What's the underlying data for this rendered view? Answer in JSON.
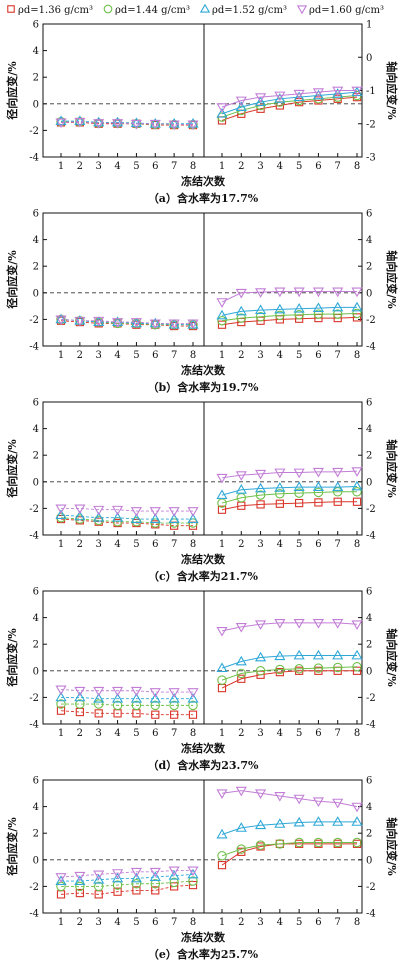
{
  "legend": {
    "entries": [
      {
        "label": "ρd=1.36 g/cm³",
        "color": "#d9352a",
        "marker": "square"
      },
      {
        "label": "ρd=1.44 g/cm³",
        "color": "#6fc04a",
        "marker": "circle"
      },
      {
        "label": "ρd=1.52 g/cm³",
        "color": "#2fa8d8",
        "marker": "triangle-up"
      },
      {
        "label": "ρd=1.60 g/cm³",
        "color": "#c27ed6",
        "marker": "triangle-down"
      }
    ]
  },
  "chart_data": [
    {
      "type": "line",
      "caption": "（a）含水率为17.7%",
      "xlabel": "冻结次数",
      "left_ylabel": "径向应变/%",
      "right_ylabel": "轴向应变/%",
      "x": [
        1,
        2,
        3,
        4,
        5,
        6,
        7,
        8
      ],
      "left_ylim": [
        -4,
        6
      ],
      "left_yticks": [
        -4,
        -2,
        0,
        2,
        4,
        6
      ],
      "right_ylim": [
        -3,
        1
      ],
      "right_yticks": [
        -3,
        -2,
        -1,
        0,
        1
      ],
      "radial_series": [
        {
          "values": [
            -1.4,
            -1.4,
            -1.5,
            -1.5,
            -1.5,
            -1.6,
            -1.6,
            -1.6
          ]
        },
        {
          "values": [
            -1.35,
            -1.35,
            -1.45,
            -1.45,
            -1.5,
            -1.55,
            -1.55,
            -1.55
          ]
        },
        {
          "values": [
            -1.3,
            -1.3,
            -1.4,
            -1.4,
            -1.45,
            -1.5,
            -1.5,
            -1.5
          ]
        },
        {
          "values": [
            -1.4,
            -1.35,
            -1.45,
            -1.45,
            -1.5,
            -1.5,
            -1.55,
            -1.55
          ]
        }
      ],
      "axial_series": [
        {
          "values": [
            -1.9,
            -1.7,
            -1.55,
            -1.45,
            -1.35,
            -1.3,
            -1.25,
            -1.2
          ]
        },
        {
          "values": [
            -1.8,
            -1.6,
            -1.45,
            -1.35,
            -1.3,
            -1.25,
            -1.2,
            -1.15
          ]
        },
        {
          "values": [
            -1.7,
            -1.5,
            -1.35,
            -1.25,
            -1.2,
            -1.15,
            -1.1,
            -1.05
          ]
        },
        {
          "values": [
            -1.5,
            -1.3,
            -1.2,
            -1.15,
            -1.1,
            -1.05,
            -1.0,
            -1.0
          ]
        }
      ]
    },
    {
      "type": "line",
      "caption": "（b）含水率为19.7%",
      "xlabel": "冻结次数",
      "left_ylabel": "径向应变/%",
      "right_ylabel": "轴向应变/%",
      "x": [
        1,
        2,
        3,
        4,
        5,
        6,
        7,
        8
      ],
      "left_ylim": [
        -4,
        6
      ],
      "left_yticks": [
        -4,
        -2,
        0,
        2,
        4,
        6
      ],
      "right_ylim": [
        -4,
        6
      ],
      "right_yticks": [
        -4,
        -2,
        0,
        2,
        4,
        6
      ],
      "radial_series": [
        {
          "values": [
            -2.1,
            -2.2,
            -2.3,
            -2.3,
            -2.4,
            -2.4,
            -2.5,
            -2.5
          ]
        },
        {
          "values": [
            -2.0,
            -2.1,
            -2.2,
            -2.3,
            -2.3,
            -2.4,
            -2.4,
            -2.4
          ]
        },
        {
          "values": [
            -2.0,
            -2.1,
            -2.2,
            -2.2,
            -2.3,
            -2.3,
            -2.4,
            -2.4
          ]
        },
        {
          "values": [
            -2.0,
            -2.1,
            -2.1,
            -2.2,
            -2.2,
            -2.3,
            -2.3,
            -2.3
          ]
        }
      ],
      "axial_series": [
        {
          "values": [
            -2.4,
            -2.2,
            -2.1,
            -2.0,
            -1.95,
            -1.9,
            -1.9,
            -1.85
          ]
        },
        {
          "values": [
            -2.1,
            -1.9,
            -1.8,
            -1.7,
            -1.65,
            -1.6,
            -1.6,
            -1.55
          ]
        },
        {
          "values": [
            -1.7,
            -1.4,
            -1.3,
            -1.25,
            -1.2,
            -1.15,
            -1.1,
            -1.1
          ]
        },
        {
          "values": [
            -0.7,
            0.0,
            0.05,
            0.1,
            0.1,
            0.1,
            0.1,
            0.1
          ]
        }
      ]
    },
    {
      "type": "line",
      "caption": "（c）含水率为21.7%",
      "xlabel": "冻结次数",
      "left_ylabel": "径向应变/%",
      "right_ylabel": "轴向应变/%",
      "x": [
        1,
        2,
        3,
        4,
        5,
        6,
        7,
        8
      ],
      "left_ylim": [
        -4,
        6
      ],
      "left_yticks": [
        -4,
        -2,
        0,
        2,
        4,
        6
      ],
      "right_ylim": [
        -4,
        6
      ],
      "right_yticks": [
        -4,
        -2,
        0,
        2,
        4,
        6
      ],
      "radial_series": [
        {
          "values": [
            -2.8,
            -2.9,
            -3.0,
            -3.1,
            -3.1,
            -3.2,
            -3.3,
            -3.3
          ]
        },
        {
          "values": [
            -2.7,
            -2.8,
            -2.9,
            -3.0,
            -3.0,
            -3.1,
            -3.1,
            -3.1
          ]
        },
        {
          "values": [
            -2.5,
            -2.6,
            -2.7,
            -2.7,
            -2.8,
            -2.8,
            -2.8,
            -2.8
          ]
        },
        {
          "values": [
            -2.0,
            -2.0,
            -2.1,
            -2.1,
            -2.2,
            -2.2,
            -2.2,
            -2.2
          ]
        }
      ],
      "axial_series": [
        {
          "values": [
            -2.1,
            -1.8,
            -1.7,
            -1.65,
            -1.6,
            -1.55,
            -1.5,
            -1.5
          ]
        },
        {
          "values": [
            -1.6,
            -1.2,
            -1.0,
            -0.9,
            -0.85,
            -0.8,
            -0.75,
            -0.75
          ]
        },
        {
          "values": [
            -1.0,
            -0.6,
            -0.5,
            -0.45,
            -0.4,
            -0.4,
            -0.4,
            -0.35
          ]
        },
        {
          "values": [
            0.3,
            0.5,
            0.6,
            0.7,
            0.7,
            0.75,
            0.75,
            0.8
          ]
        }
      ]
    },
    {
      "type": "line",
      "caption": "（d）含水率为23.7%",
      "xlabel": "冻结次数",
      "left_ylabel": "径向应变/%",
      "right_ylabel": "轴向应变/%",
      "x": [
        1,
        2,
        3,
        4,
        5,
        6,
        7,
        8
      ],
      "left_ylim": [
        -4,
        6
      ],
      "left_yticks": [
        -4,
        -2,
        0,
        2,
        4,
        6
      ],
      "right_ylim": [
        -4,
        6
      ],
      "right_yticks": [
        -4,
        -2,
        0,
        2,
        4,
        6
      ],
      "radial_series": [
        {
          "values": [
            -3.0,
            -3.1,
            -3.2,
            -3.2,
            -3.2,
            -3.3,
            -3.3,
            -3.3
          ]
        },
        {
          "values": [
            -2.5,
            -2.5,
            -2.5,
            -2.6,
            -2.6,
            -2.6,
            -2.6,
            -2.6
          ]
        },
        {
          "values": [
            -2.0,
            -2.0,
            -2.1,
            -2.1,
            -2.1,
            -2.1,
            -2.1,
            -2.1
          ]
        },
        {
          "values": [
            -1.4,
            -1.5,
            -1.5,
            -1.5,
            -1.5,
            -1.6,
            -1.6,
            -1.6
          ]
        }
      ],
      "axial_series": [
        {
          "values": [
            -1.3,
            -0.6,
            -0.3,
            -0.1,
            0.0,
            0.0,
            0.0,
            0.0
          ]
        },
        {
          "values": [
            -0.7,
            -0.2,
            0.0,
            0.1,
            0.15,
            0.2,
            0.25,
            0.3
          ]
        },
        {
          "values": [
            0.2,
            0.7,
            1.0,
            1.1,
            1.15,
            1.15,
            1.15,
            1.15
          ]
        },
        {
          "values": [
            3.0,
            3.3,
            3.5,
            3.6,
            3.6,
            3.6,
            3.6,
            3.5
          ]
        }
      ]
    },
    {
      "type": "line",
      "caption": "（e）含水率为25.7%",
      "xlabel": "冻结次数",
      "left_ylabel": "径向应变/%",
      "right_ylabel": "轴向应变/%",
      "x": [
        1,
        2,
        3,
        4,
        5,
        6,
        7,
        8
      ],
      "left_ylim": [
        -4,
        6
      ],
      "left_yticks": [
        -4,
        -2,
        0,
        2,
        4,
        6
      ],
      "right_ylim": [
        -4,
        6
      ],
      "right_yticks": [
        -4,
        -2,
        0,
        2,
        4,
        6
      ],
      "radial_series": [
        {
          "values": [
            -2.6,
            -2.5,
            -2.6,
            -2.4,
            -2.3,
            -2.3,
            -2.0,
            -1.9
          ]
        },
        {
          "values": [
            -2.0,
            -2.0,
            -2.0,
            -1.9,
            -1.8,
            -1.8,
            -1.7,
            -1.6
          ]
        },
        {
          "values": [
            -1.6,
            -1.6,
            -1.5,
            -1.4,
            -1.4,
            -1.3,
            -1.2,
            -1.1
          ]
        },
        {
          "values": [
            -1.3,
            -1.2,
            -1.1,
            -1.0,
            -0.9,
            -0.9,
            -0.8,
            -0.8
          ]
        }
      ],
      "axial_series": [
        {
          "values": [
            -0.4,
            0.6,
            1.0,
            1.2,
            1.2,
            1.2,
            1.2,
            1.2
          ]
        },
        {
          "values": [
            0.3,
            0.8,
            1.1,
            1.2,
            1.3,
            1.3,
            1.3,
            1.3
          ]
        },
        {
          "values": [
            1.9,
            2.4,
            2.6,
            2.7,
            2.8,
            2.85,
            2.85,
            2.85
          ]
        },
        {
          "values": [
            5.0,
            5.2,
            5.0,
            4.8,
            4.6,
            4.4,
            4.3,
            4.0
          ]
        }
      ]
    }
  ]
}
